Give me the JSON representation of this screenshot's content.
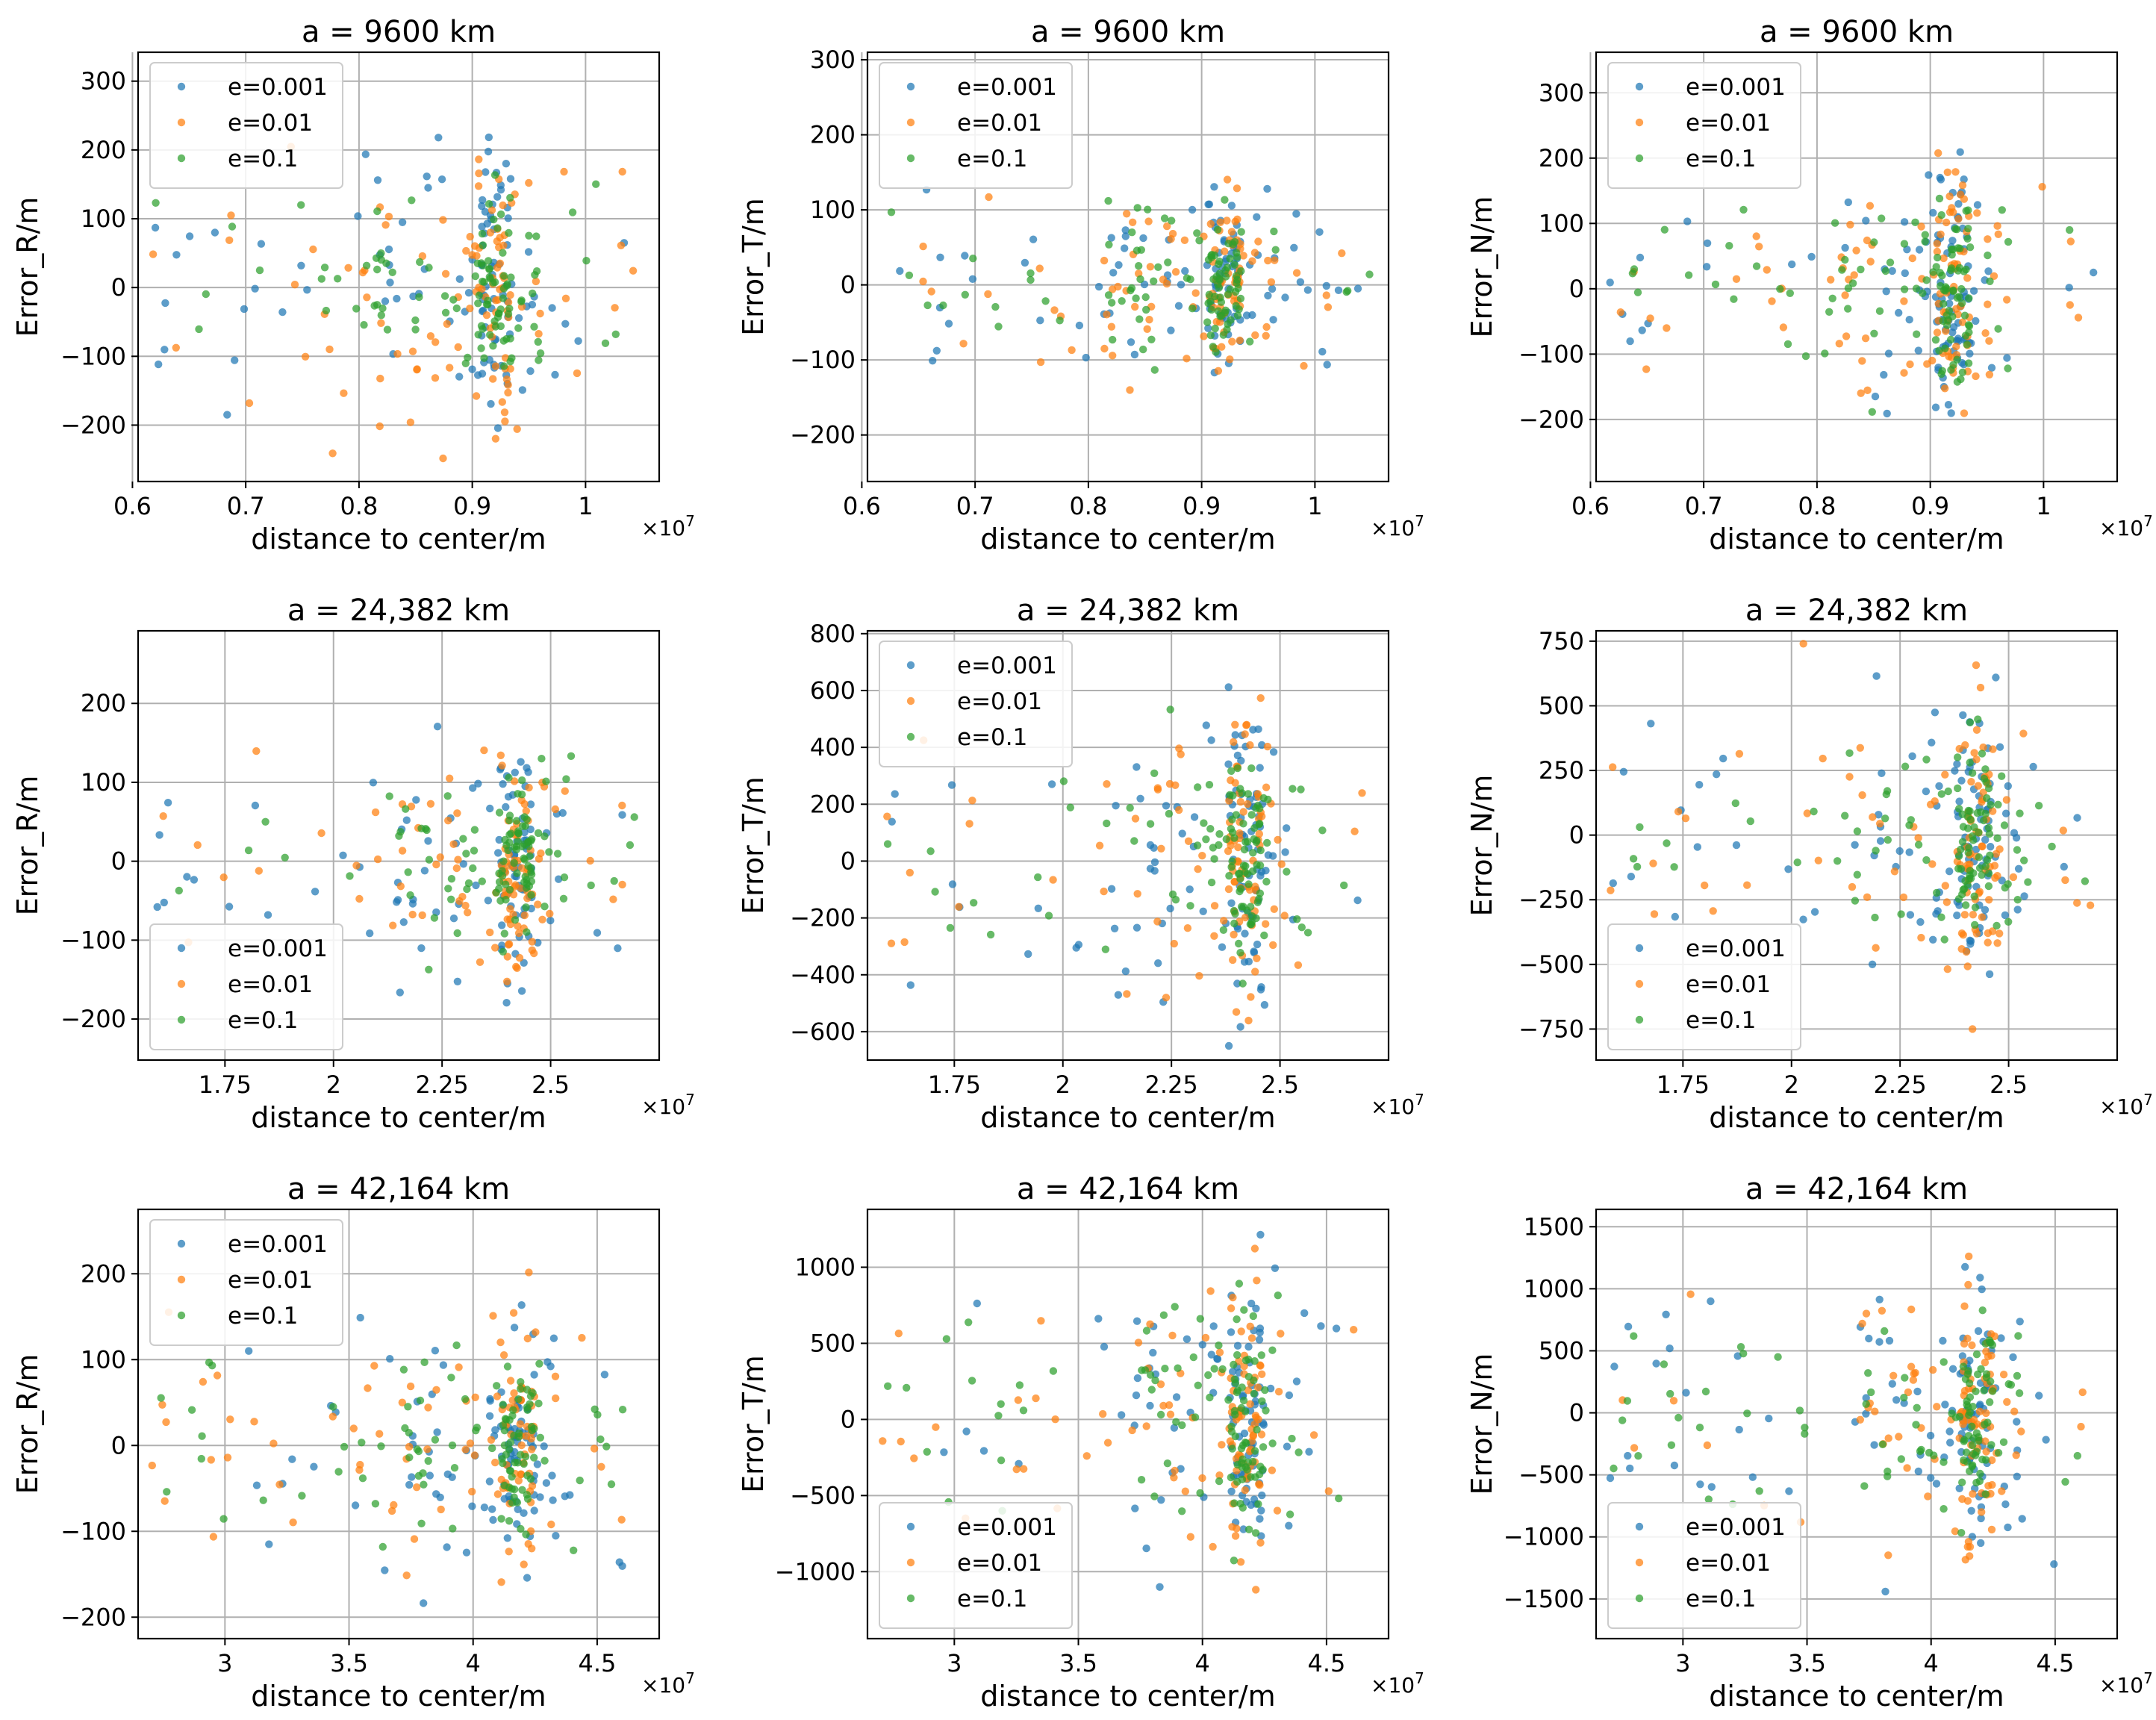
{
  "colors": {
    "e0001": "#1f77b4",
    "e001": "#ff7f0e",
    "e01": "#2ca02c",
    "grid": "#b0b0b0"
  },
  "legend_labels": [
    "e=0.001",
    "e=0.01",
    "e=0.1"
  ],
  "xlabel": "distance to center/m",
  "x_multiplier": "×10",
  "x_multiplier_exp": "7",
  "chart_data": [
    {
      "type": "scatter",
      "title": "a = 9600 km",
      "ylabel": "Error_R/m",
      "xlim": [
        0.605,
        1.065
      ],
      "ylim": [
        -282,
        342
      ],
      "xticks": [
        0.6,
        0.7,
        0.8,
        0.9,
        1.0
      ],
      "xtick_labels": [
        "0.6",
        "0.7",
        "0.8",
        "0.9",
        "1"
      ],
      "yticks": [
        -200,
        -100,
        0,
        100,
        200,
        300
      ],
      "ytick_labels": [
        "−200",
        "−100",
        "0",
        "100",
        "200",
        "300"
      ],
      "legend_loc": "upper-left",
      "center": 0.92,
      "xmin": 0.615,
      "xmax": 1.05,
      "spread": 95,
      "maxabs": 270
    },
    {
      "type": "scatter",
      "title": "a = 9600 km",
      "ylabel": "Error_T/m",
      "xlim": [
        0.605,
        1.065
      ],
      "ylim": [
        -262,
        310
      ],
      "xticks": [
        0.6,
        0.7,
        0.8,
        0.9,
        1.0
      ],
      "xtick_labels": [
        "0.6",
        "0.7",
        "0.8",
        "0.9",
        "1"
      ],
      "yticks": [
        -200,
        -100,
        0,
        100,
        200,
        300
      ],
      "ytick_labels": [
        "−200",
        "−100",
        "0",
        "100",
        "200",
        "300"
      ],
      "legend_loc": "upper-left",
      "center": 0.92,
      "xmin": 0.615,
      "xmax": 1.05,
      "spread": 60,
      "maxabs": 230
    },
    {
      "type": "scatter",
      "title": "a = 9600 km",
      "ylabel": "Error_N/m",
      "xlim": [
        0.605,
        1.065
      ],
      "ylim": [
        -295,
        362
      ],
      "xticks": [
        0.6,
        0.7,
        0.8,
        0.9,
        1.0
      ],
      "xtick_labels": [
        "0.6",
        "0.7",
        "0.8",
        "0.9",
        "1"
      ],
      "yticks": [
        -200,
        -100,
        0,
        100,
        200,
        300
      ],
      "ytick_labels": [
        "−200",
        "−100",
        "0",
        "100",
        "200",
        "300"
      ],
      "legend_loc": "upper-left",
      "center": 0.92,
      "xmin": 0.615,
      "xmax": 1.05,
      "spread": 95,
      "maxabs": 320
    },
    {
      "type": "scatter",
      "title": "a = 24,382 km",
      "ylabel": "Error_R/m",
      "xlim": [
        1.55,
        2.75
      ],
      "ylim": [
        -252,
        292
      ],
      "xticks": [
        1.75,
        2.0,
        2.25,
        2.5
      ],
      "xtick_labels": [
        "1.75",
        "2",
        "2.25",
        "2.5"
      ],
      "yticks": [
        -200,
        -100,
        0,
        100,
        200
      ],
      "ytick_labels": [
        "−200",
        "−100",
        "0",
        "100",
        "200"
      ],
      "legend_loc": "lower-left",
      "center": 2.42,
      "xmin": 1.58,
      "xmax": 2.7,
      "spread": 70,
      "maxabs": 240
    },
    {
      "type": "scatter",
      "title": "a = 24,382 km",
      "ylabel": "Error_T/m",
      "xlim": [
        1.55,
        2.75
      ],
      "ylim": [
        -700,
        810
      ],
      "xticks": [
        1.75,
        2.0,
        2.25,
        2.5
      ],
      "xtick_labels": [
        "1.75",
        "2",
        "2.25",
        "2.5"
      ],
      "yticks": [
        -600,
        -400,
        -200,
        0,
        200,
        400,
        600,
        800
      ],
      "ytick_labels": [
        "−600",
        "−400",
        "−200",
        "0",
        "200",
        "400",
        "600",
        "800"
      ],
      "legend_loc": "upper-left",
      "center": 2.42,
      "xmin": 1.58,
      "xmax": 2.7,
      "spread": 260,
      "maxabs": 650
    },
    {
      "type": "scatter",
      "title": "a = 24,382 km",
      "ylabel": "Error_N/m",
      "xlim": [
        1.55,
        2.75
      ],
      "ylim": [
        -870,
        790
      ],
      "xticks": [
        1.75,
        2.0,
        2.25,
        2.5
      ],
      "xtick_labels": [
        "1.75",
        "2",
        "2.25",
        "2.5"
      ],
      "yticks": [
        -750,
        -500,
        -250,
        0,
        250,
        500,
        750
      ],
      "ytick_labels": [
        "−750",
        "−500",
        "−250",
        "0",
        "250",
        "500",
        "750"
      ],
      "legend_loc": "lower-left",
      "center": 2.42,
      "xmin": 1.58,
      "xmax": 2.7,
      "spread": 280,
      "maxabs": 750
    },
    {
      "type": "scatter",
      "title": "a = 42,164 km",
      "ylabel": "Error_R/m",
      "xlim": [
        2.65,
        4.75
      ],
      "ylim": [
        -225,
        275
      ],
      "xticks": [
        3.0,
        3.5,
        4.0,
        4.5
      ],
      "xtick_labels": [
        "3",
        "3.5",
        "4",
        "4.5"
      ],
      "yticks": [
        -200,
        -100,
        0,
        100,
        200
      ],
      "ytick_labels": [
        "−200",
        "−100",
        "0",
        "100",
        "200"
      ],
      "legend_loc": "upper-left",
      "center": 4.18,
      "xmin": 2.7,
      "xmax": 4.62,
      "spread": 70,
      "maxabs": 240
    },
    {
      "type": "scatter",
      "title": "a = 42,164 km",
      "ylabel": "Error_T/m",
      "xlim": [
        2.65,
        4.75
      ],
      "ylim": [
        -1440,
        1380
      ],
      "xticks": [
        3.0,
        3.5,
        4.0,
        4.5
      ],
      "xtick_labels": [
        "3",
        "3.5",
        "4",
        "4.5"
      ],
      "yticks": [
        -1000,
        -500,
        0,
        500,
        1000
      ],
      "ytick_labels": [
        "−1000",
        "−500",
        "0",
        "500",
        "1000"
      ],
      "legend_loc": "lower-left",
      "center": 4.18,
      "xmin": 2.7,
      "xmax": 4.62,
      "spread": 480,
      "maxabs": 1300
    },
    {
      "type": "scatter",
      "title": "a = 42,164 km",
      "ylabel": "Error_N/m",
      "xlim": [
        2.65,
        4.75
      ],
      "ylim": [
        -1820,
        1640
      ],
      "xticks": [
        3.0,
        3.5,
        4.0,
        4.5
      ],
      "xtick_labels": [
        "3",
        "3.5",
        "4",
        "4.5"
      ],
      "yticks": [
        -1500,
        -1000,
        -500,
        0,
        500,
        1000,
        1500
      ],
      "ytick_labels": [
        "−1500",
        "−1000",
        "−500",
        "0",
        "500",
        "1000",
        "1500"
      ],
      "legend_loc": "lower-left",
      "center": 4.18,
      "xmin": 2.7,
      "xmax": 4.62,
      "spread": 520,
      "maxabs": 1500
    }
  ]
}
